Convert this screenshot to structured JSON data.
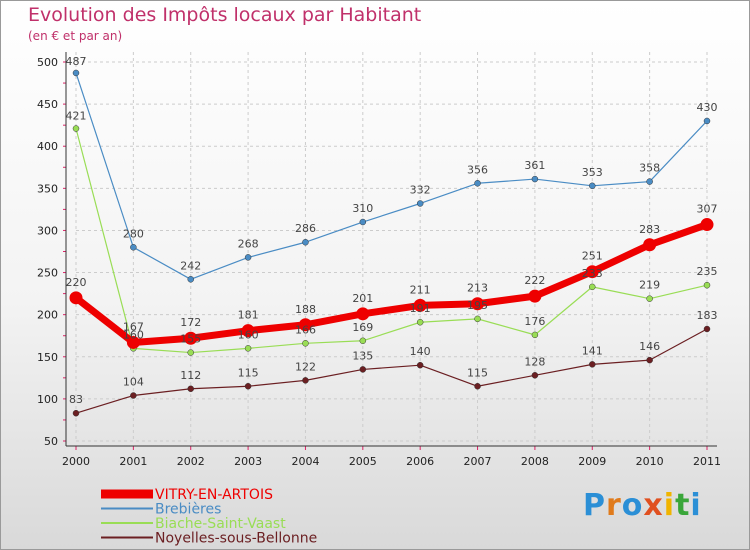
{
  "colors": {
    "title": "#c0306a",
    "series": [
      "#ee0000",
      "#4a8cc4",
      "#99dd55",
      "#6b1f22"
    ],
    "grid": "#cccccc",
    "axis": "#dd2266"
  },
  "chart_data": {
    "type": "line",
    "title": "Evolution des Impôts locaux par Habitant",
    "subtitle": "(en € et par an)",
    "xlabel": "",
    "ylabel": "",
    "x": [
      "2000",
      "2001",
      "2002",
      "2003",
      "2004",
      "2005",
      "2006",
      "2007",
      "2008",
      "2009",
      "2010",
      "2011"
    ],
    "ylim": [
      50,
      500
    ],
    "yticks": [
      50,
      100,
      150,
      200,
      250,
      300,
      350,
      400,
      450,
      500
    ],
    "grid": true,
    "legend_position": "bottom-left",
    "series": [
      {
        "name": "VITRY-EN-ARTOIS",
        "values": [
          220,
          167,
          172,
          181,
          188,
          201,
          211,
          213,
          222,
          251,
          283,
          307
        ]
      },
      {
        "name": "Brebières",
        "values": [
          487,
          280,
          242,
          268,
          286,
          310,
          332,
          356,
          361,
          353,
          358,
          430
        ]
      },
      {
        "name": "Biache-Saint-Vaast",
        "values": [
          421,
          160,
          155,
          160,
          166,
          169,
          191,
          195,
          176,
          233,
          219,
          235
        ]
      },
      {
        "name": "Noyelles-sous-Bellonne",
        "values": [
          83,
          104,
          112,
          115,
          122,
          135,
          140,
          115,
          128,
          141,
          146,
          183
        ]
      }
    ]
  },
  "logo": {
    "letters": [
      "P",
      "r",
      "o",
      "x",
      "i",
      "t",
      "i"
    ],
    "colors": [
      "#2b8fd6",
      "#e07b1c",
      "#2b8fd6",
      "#e05020",
      "#f0b400",
      "#3aa63a",
      "#2b8fd6"
    ]
  }
}
